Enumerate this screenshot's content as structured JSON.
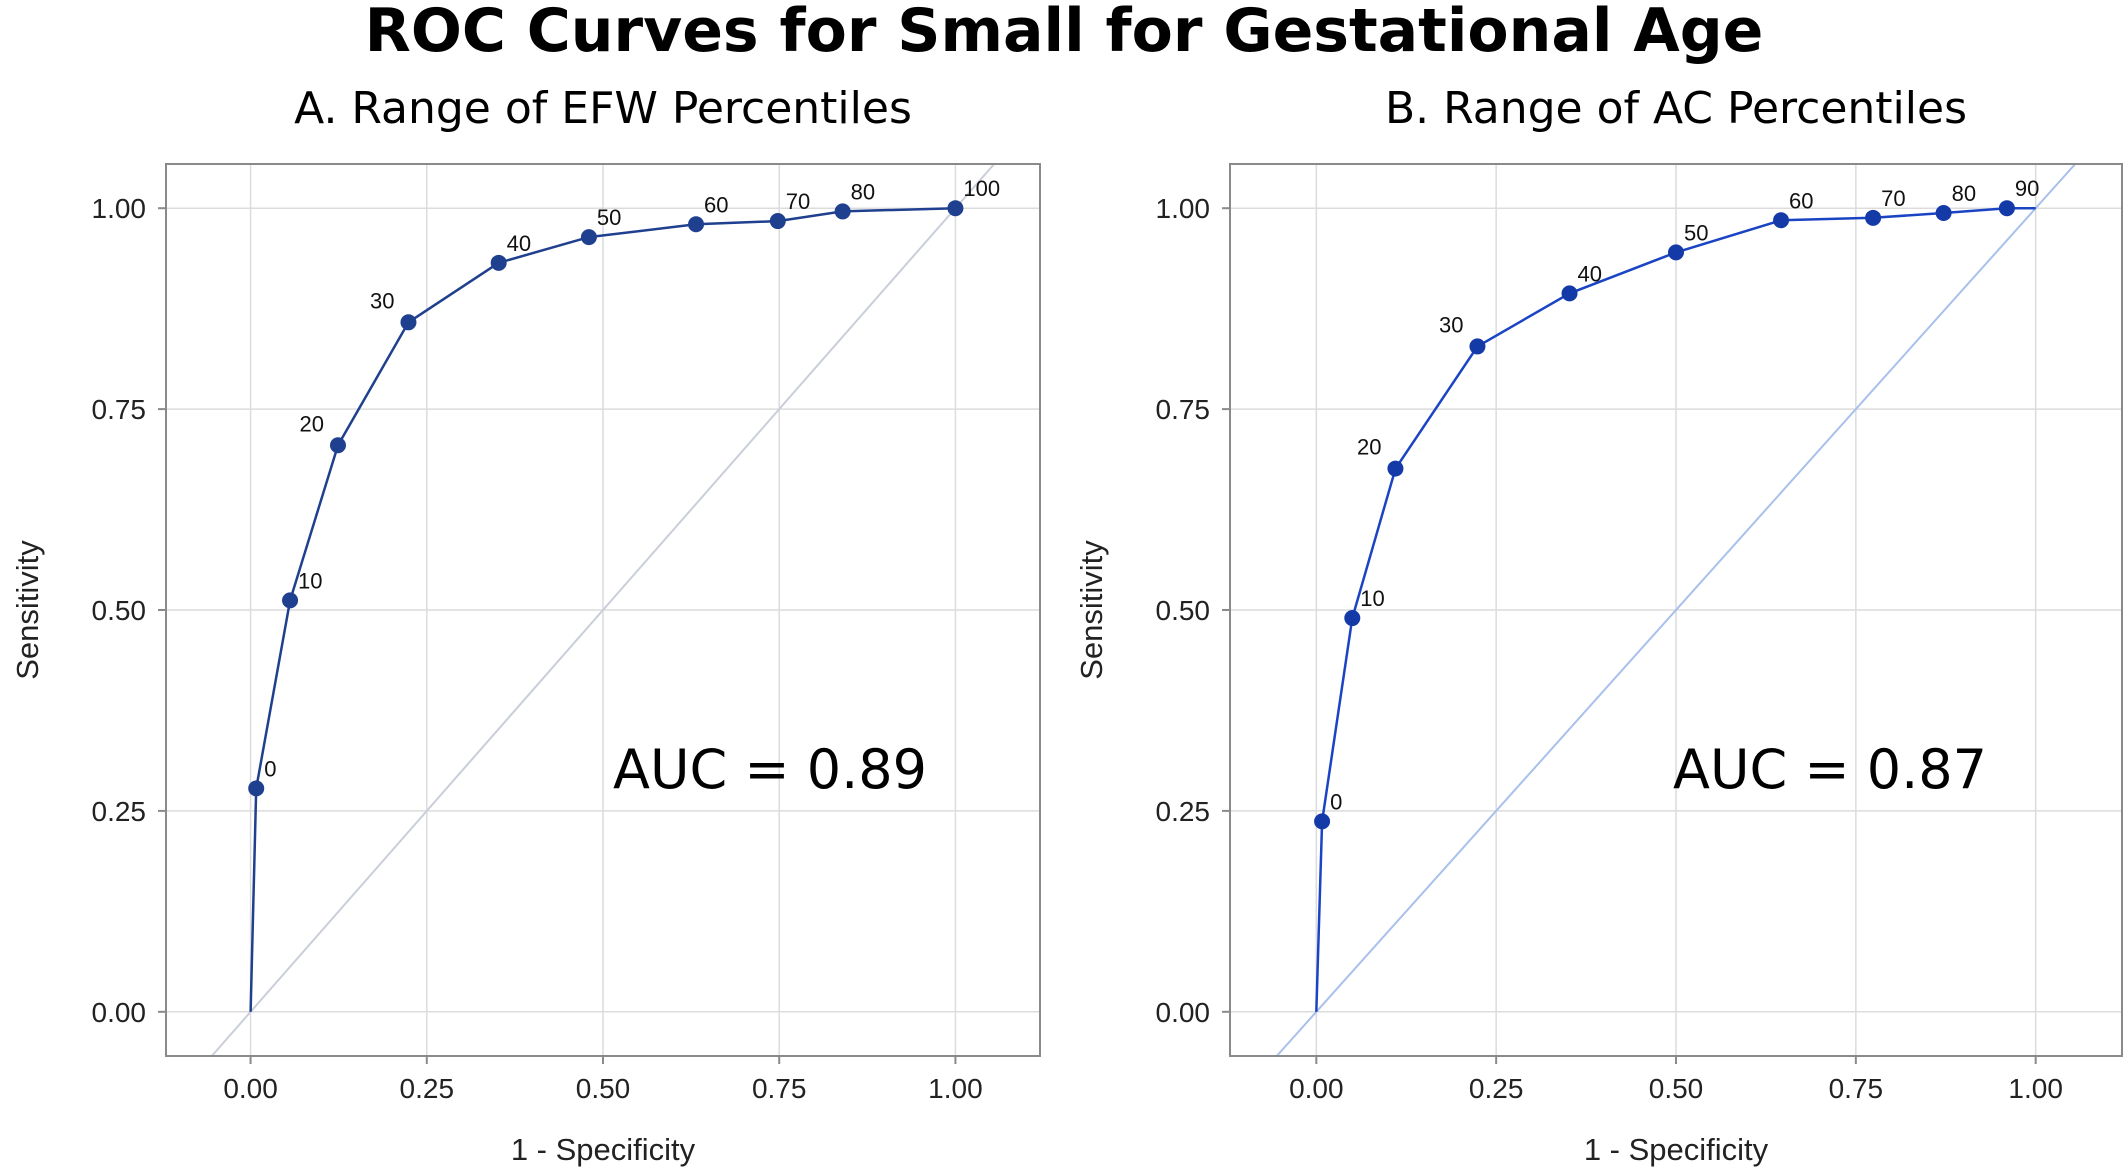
{
  "title": "ROC Curves for Small for Gestational Age",
  "chart_data": [
    {
      "type": "line",
      "title": "A. Range of EFW Percentiles",
      "xlabel": "1 - Specificity",
      "ylabel": "Sensitivity",
      "xlim": [
        -0.12,
        1.12
      ],
      "ylim": [
        -0.055,
        1.055
      ],
      "xticks": [
        "0.00",
        "0.25",
        "0.50",
        "0.75",
        "1.00"
      ],
      "yticks": [
        "0.00",
        "0.25",
        "0.50",
        "0.75",
        "1.00"
      ],
      "grid": true,
      "annotation": "AUC = 0.89",
      "series": [
        {
          "points": [
            {
              "x": 0.0,
              "y": 0.0,
              "label": ""
            },
            {
              "x": 0.008,
              "y": 0.278,
              "label": "0"
            },
            {
              "x": 0.056,
              "y": 0.512,
              "label": "10"
            },
            {
              "x": 0.124,
              "y": 0.705,
              "label": "20"
            },
            {
              "x": 0.224,
              "y": 0.858,
              "label": "30"
            },
            {
              "x": 0.352,
              "y": 0.932,
              "label": "40"
            },
            {
              "x": 0.48,
              "y": 0.964,
              "label": "50"
            },
            {
              "x": 0.632,
              "y": 0.98,
              "label": "60"
            },
            {
              "x": 0.748,
              "y": 0.984,
              "label": "70"
            },
            {
              "x": 0.84,
              "y": 0.996,
              "label": "80"
            },
            {
              "x": 1.0,
              "y": 1.0,
              "label": "100"
            }
          ]
        }
      ],
      "colors": {
        "curve": "#1f3f8f",
        "marker": "#1f3f8f",
        "diagonal": "#c9ced9"
      }
    },
    {
      "type": "line",
      "title": "B. Range of AC Percentiles",
      "xlabel": "1 - Specificity",
      "ylabel": "Sensitivity",
      "xlim": [
        -0.12,
        1.12
      ],
      "ylim": [
        -0.055,
        1.055
      ],
      "xticks": [
        "0.00",
        "0.25",
        "0.50",
        "0.75",
        "1.00"
      ],
      "yticks": [
        "0.00",
        "0.25",
        "0.50",
        "0.75",
        "1.00"
      ],
      "grid": true,
      "annotation": "AUC = 0.87",
      "series": [
        {
          "points": [
            {
              "x": 0.0,
              "y": 0.0,
              "label": ""
            },
            {
              "x": 0.008,
              "y": 0.237,
              "label": "0"
            },
            {
              "x": 0.05,
              "y": 0.49,
              "label": "10"
            },
            {
              "x": 0.11,
              "y": 0.676,
              "label": "20"
            },
            {
              "x": 0.224,
              "y": 0.828,
              "label": "30"
            },
            {
              "x": 0.352,
              "y": 0.894,
              "label": "40"
            },
            {
              "x": 0.5,
              "y": 0.945,
              "label": "50"
            },
            {
              "x": 0.646,
              "y": 0.985,
              "label": "60"
            },
            {
              "x": 0.774,
              "y": 0.988,
              "label": "70"
            },
            {
              "x": 0.872,
              "y": 0.994,
              "label": "80"
            },
            {
              "x": 0.96,
              "y": 1.0,
              "label": "90"
            },
            {
              "x": 1.0,
              "y": 1.0,
              "label": ""
            }
          ]
        }
      ],
      "colors": {
        "curve": "#1a44c4",
        "marker": "#143aa8",
        "diagonal": "#a9c0ec"
      }
    }
  ]
}
